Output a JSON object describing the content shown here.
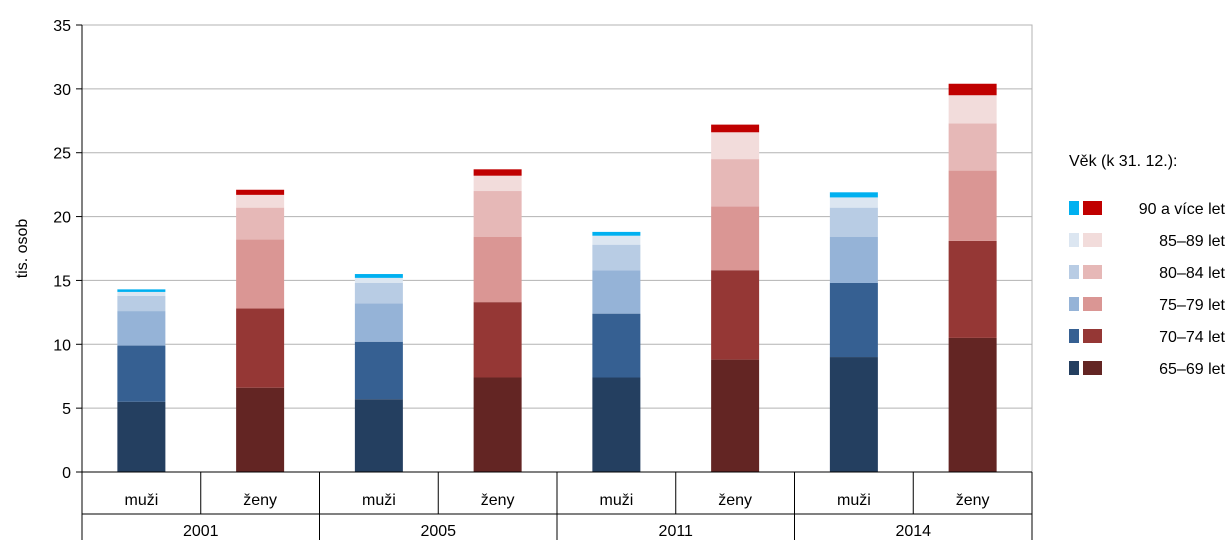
{
  "chart_data": {
    "type": "bar",
    "stacked": true,
    "ylabel": "tis. osob",
    "ylim": [
      0,
      35
    ],
    "yticks": [
      0,
      5,
      10,
      15,
      20,
      25,
      30,
      35
    ],
    "grid": true,
    "groups": [
      {
        "label": "2001",
        "categories": [
          "muži",
          "ženy"
        ]
      },
      {
        "label": "2005",
        "categories": [
          "muži",
          "ženy"
        ]
      },
      {
        "label": "2011",
        "categories": [
          "muži",
          "ženy"
        ]
      },
      {
        "label": "2014",
        "categories": [
          "muži",
          "ženy"
        ]
      }
    ],
    "legend_title": "Věk (k 31. 12.):",
    "legend_position": "right",
    "series": [
      {
        "name": "65–69 let",
        "color_muzi": "#243F60",
        "color_zeny": "#632523",
        "values": [
          5.5,
          6.6,
          5.7,
          7.4,
          7.4,
          8.8,
          9.0,
          10.5
        ]
      },
      {
        "name": "70–74 let",
        "color_muzi": "#366092",
        "color_zeny": "#953735",
        "values": [
          4.4,
          6.2,
          4.5,
          5.9,
          5.0,
          7.0,
          5.8,
          7.6
        ]
      },
      {
        "name": "75–79 let",
        "color_muzi": "#95B3D7",
        "color_zeny": "#DA9694",
        "values": [
          2.7,
          5.4,
          3.0,
          5.1,
          3.4,
          5.0,
          3.6,
          5.5
        ]
      },
      {
        "name": "80–84 let",
        "color_muzi": "#B8CCE4",
        "color_zeny": "#E6B8B7",
        "values": [
          1.2,
          2.5,
          1.6,
          3.6,
          2.0,
          3.7,
          2.3,
          3.7
        ]
      },
      {
        "name": "85–89 let",
        "color_muzi": "#DCE6F1",
        "color_zeny": "#F2DCDB",
        "values": [
          0.3,
          1.0,
          0.4,
          1.2,
          0.7,
          2.1,
          0.8,
          2.2
        ]
      },
      {
        "name": "90 a více let",
        "color_muzi": "#00B0F0",
        "color_zeny": "#C00000",
        "values": [
          0.2,
          0.4,
          0.3,
          0.5,
          0.3,
          0.6,
          0.4,
          0.9
        ]
      }
    ]
  }
}
